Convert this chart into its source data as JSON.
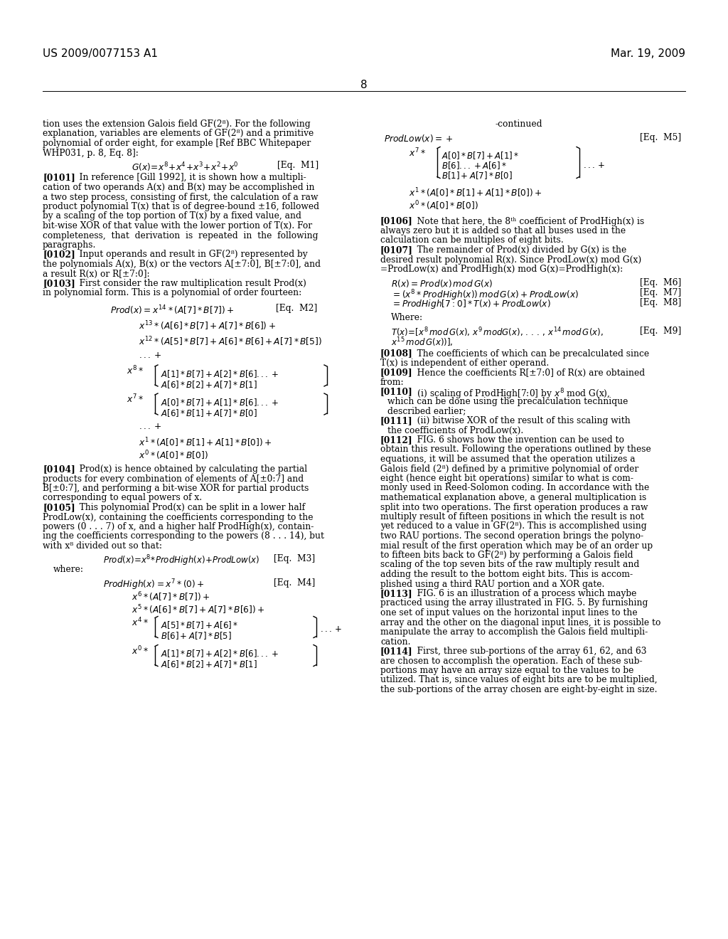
{
  "page_header_left": "US 2009/0077153 A1",
  "page_header_right": "Mar. 19, 2009",
  "page_number": "8",
  "background_color": "#ffffff"
}
